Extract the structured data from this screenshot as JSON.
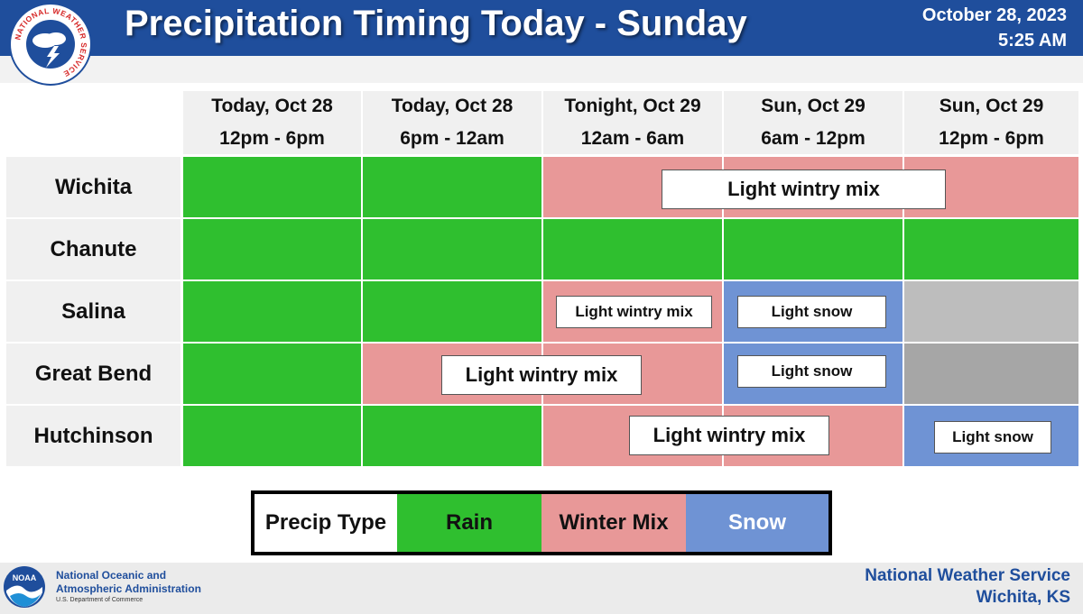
{
  "header": {
    "title": "Precipitation Timing Today - Sunday",
    "date": "October 28, 2023",
    "time": "5:25 AM",
    "logo_text": "NATIONAL WEATHER SERVICE"
  },
  "columns": [
    {
      "line1": "Today, Oct 28",
      "line2": "12pm - 6pm"
    },
    {
      "line1": "Today, Oct 28",
      "line2": "6pm - 12am"
    },
    {
      "line1": "Tonight, Oct 29",
      "line2": "12am - 6am"
    },
    {
      "line1": "Sun, Oct 29",
      "line2": "6am - 12pm"
    },
    {
      "line1": "Sun, Oct 29",
      "line2": "12pm - 6pm"
    }
  ],
  "rows": [
    {
      "city": "Wichita",
      "cells": [
        "rain",
        "rain",
        "mix",
        "mix",
        "mix"
      ],
      "labels": [
        "Light wintry mix"
      ]
    },
    {
      "city": "Chanute",
      "cells": [
        "rain",
        "rain",
        "rain",
        "rain",
        "rain"
      ],
      "labels": []
    },
    {
      "city": "Salina",
      "cells": [
        "rain",
        "rain",
        "mix",
        "snow",
        "none"
      ],
      "labels": [
        "Light wintry mix",
        "Light snow"
      ]
    },
    {
      "city": "Great Bend",
      "cells": [
        "rain",
        "mix",
        "mix",
        "snow",
        "none"
      ],
      "labels": [
        "Light wintry mix",
        "Light snow"
      ]
    },
    {
      "city": "Hutchinson",
      "cells": [
        "rain",
        "rain",
        "mix",
        "mix",
        "snow"
      ],
      "labels": [
        "Light wintry mix",
        "Light snow"
      ]
    }
  ],
  "legend": {
    "title": "Precip Type",
    "rain": "Rain",
    "mix": "Winter Mix",
    "snow": "Snow"
  },
  "colors": {
    "header_blue": "#1f4e9c",
    "rain": "#2fbf2f",
    "mix": "#e89898",
    "snow": "#6f93d4",
    "none": "#bdbdbd"
  },
  "footer": {
    "noaa_line1": "National Oceanic and",
    "noaa_line2": "Atmospheric Administration",
    "noaa_line3": "U.S. Department of Commerce",
    "noaa_logo_text": "NOAA",
    "nws_line1": "National Weather Service",
    "nws_line2": "Wichita, KS"
  }
}
